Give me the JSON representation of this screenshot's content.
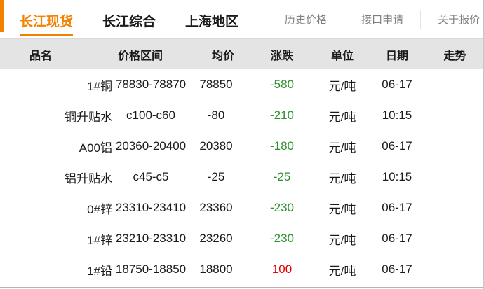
{
  "colors": {
    "accent": "#f28100",
    "up": "#e60000",
    "down": "#2d8f2d"
  },
  "nav": {
    "tabs": [
      {
        "label": "长江现货",
        "active": true
      },
      {
        "label": "长江综合",
        "active": false
      },
      {
        "label": "上海地区",
        "active": false
      }
    ],
    "links": [
      {
        "label": "历史价格"
      },
      {
        "label": "接口申请"
      },
      {
        "label": "关于报价"
      }
    ]
  },
  "table": {
    "columns": [
      "品名",
      "价格区间",
      "均价",
      "涨跌",
      "单位",
      "日期",
      "走势"
    ],
    "rows": [
      {
        "name": "1#铜",
        "range": "78830-78870",
        "avg": "78850",
        "change": "-580",
        "direction": "down",
        "unit": "元/吨",
        "date": "06-17",
        "trend": ""
      },
      {
        "name": "铜升贴水",
        "range": "c100-c60",
        "avg": "-80",
        "change": "-210",
        "direction": "down",
        "unit": "元/吨",
        "date": "10:15",
        "trend": ""
      },
      {
        "name": "A00铝",
        "range": "20360-20400",
        "avg": "20380",
        "change": "-180",
        "direction": "down",
        "unit": "元/吨",
        "date": "06-17",
        "trend": ""
      },
      {
        "name": "铝升贴水",
        "range": "c45-c5",
        "avg": "-25",
        "change": "-25",
        "direction": "down",
        "unit": "元/吨",
        "date": "10:15",
        "trend": ""
      },
      {
        "name": "0#锌",
        "range": "23310-23410",
        "avg": "23360",
        "change": "-230",
        "direction": "down",
        "unit": "元/吨",
        "date": "06-17",
        "trend": ""
      },
      {
        "name": "1#锌",
        "range": "23210-23310",
        "avg": "23260",
        "change": "-230",
        "direction": "down",
        "unit": "元/吨",
        "date": "06-17",
        "trend": ""
      },
      {
        "name": "1#铅",
        "range": "18750-18850",
        "avg": "18800",
        "change": "100",
        "direction": "up",
        "unit": "元/吨",
        "date": "06-17",
        "trend": ""
      }
    ]
  }
}
